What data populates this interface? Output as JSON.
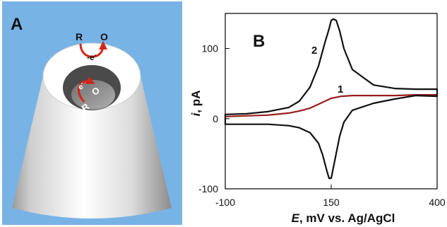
{
  "figure": {
    "panel_a": {
      "label": "A",
      "outer_reaction": {
        "reduced": "R",
        "oxidized": "O",
        "electron": "-e",
        "electron_sup": "-"
      },
      "inner_reaction": {
        "reduced": "R",
        "oxidized": "O",
        "electron": "e",
        "electron_sup": "-"
      },
      "colors": {
        "background": "#78b3e6",
        "arrow": "#d42418",
        "well": "#4a4a4a",
        "well_floor": "#8d8d8d"
      }
    },
    "panel_b": {
      "label": "B",
      "curve_labels": [
        "1",
        "2"
      ]
    }
  },
  "chart_data": {
    "type": "line",
    "title": "",
    "xlabel_italic": "E",
    "xlabel": ", mV vs. Ag/AgCl",
    "ylabel_italic": "i",
    "ylabel": ", pA",
    "xlim": [
      -100,
      400
    ],
    "ylim": [
      -100,
      150
    ],
    "x_ticks": [
      -100,
      150,
      400
    ],
    "y_ticks": [
      100,
      0,
      -100
    ],
    "grid": false,
    "series": [
      {
        "name": "1",
        "color": "#9b1c1c",
        "closed": false,
        "x": [
          -100,
          -50,
          0,
          50,
          75,
          100,
          125,
          150,
          175,
          200,
          250,
          300,
          350,
          400
        ],
        "y": [
          3,
          4,
          5,
          8,
          11,
          15,
          22,
          29,
          32,
          33,
          33,
          33,
          34,
          34
        ]
      },
      {
        "name": "2",
        "color": "#111111",
        "closed": true,
        "x": [
          -100,
          -50,
          0,
          50,
          75,
          100,
          120,
          135,
          145,
          150,
          155,
          162,
          170,
          180,
          200,
          250,
          300,
          350,
          400,
          400,
          350,
          300,
          250,
          200,
          180,
          170,
          160,
          150,
          145,
          140,
          130,
          120,
          100,
          75,
          50,
          0,
          -50,
          -100
        ],
        "y": [
          6,
          7,
          10,
          16,
          25,
          45,
          75,
          108,
          128,
          140,
          142,
          140,
          125,
          100,
          70,
          48,
          43,
          42,
          42,
          32,
          33,
          28,
          22,
          12,
          -5,
          -25,
          -55,
          -85,
          -85,
          -75,
          -52,
          -35,
          -20,
          -13,
          -10,
          -8,
          -8,
          -8
        ]
      }
    ]
  }
}
